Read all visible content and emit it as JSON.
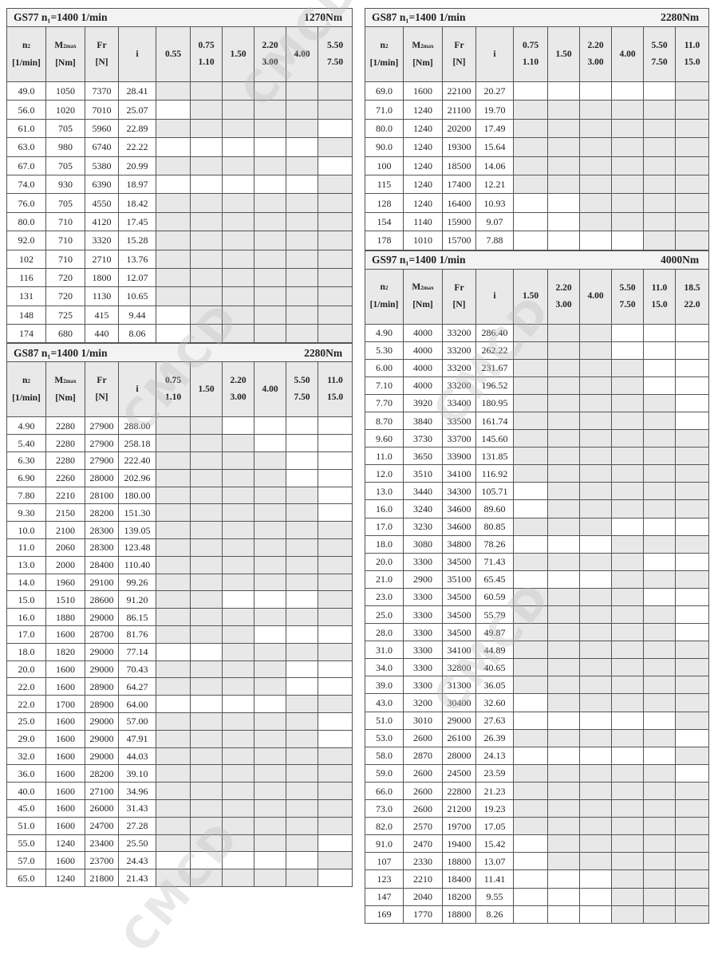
{
  "watermark": "CMCD",
  "colors": {
    "shaded": "#e8e8e8",
    "header_bg": "#e9e9e9",
    "border": "#555555"
  },
  "header_labels": {
    "n2": "n",
    "n2_sub": "2",
    "n2_unit": "[1/min]",
    "m2": "M",
    "m2_sub": "2max",
    "m2_unit": "[Nm]",
    "fr": "Fr",
    "fr_unit": "[N]",
    "i": "i"
  },
  "shading_legend": "1 = shaded cell, 0 = white cell in power columns",
  "left_tables": [
    {
      "title": "GS77 n₁=1400 1/min",
      "torque": "1270Nm",
      "power_columns": [
        [
          "0.55"
        ],
        [
          "0.75",
          "1.10"
        ],
        [
          "1.50"
        ],
        [
          "2.20",
          "3.00"
        ],
        [
          "4.00"
        ],
        [
          "5.50",
          "7.50"
        ]
      ],
      "rows": [
        [
          "49.0",
          "1050",
          "7370",
          "28.41",
          "111111"
        ],
        [
          "56.0",
          "1020",
          "7010",
          "25.07",
          "011111"
        ],
        [
          "61.0",
          "705",
          "5960",
          "22.89",
          "111110"
        ],
        [
          "63.0",
          "980",
          "6740",
          "22.22",
          "000001"
        ],
        [
          "67.0",
          "705",
          "5380",
          "20.99",
          "111110"
        ],
        [
          "74.0",
          "930",
          "6390",
          "18.97",
          "000001"
        ],
        [
          "76.0",
          "705",
          "4550",
          "18.42",
          "111111"
        ],
        [
          "80.0",
          "710",
          "4120",
          "17.45",
          "111111"
        ],
        [
          "92.0",
          "710",
          "3320",
          "15.28",
          "111111"
        ],
        [
          "102",
          "710",
          "2710",
          "13.76",
          "111111"
        ],
        [
          "116",
          "720",
          "1800",
          "12.07",
          "111111"
        ],
        [
          "131",
          "720",
          "1130",
          "10.65",
          "111111"
        ],
        [
          "148",
          "725",
          "415",
          "9.44",
          "011111"
        ],
        [
          "174",
          "680",
          "440",
          "8.06",
          "011111"
        ]
      ]
    },
    {
      "title": "GS87 n₁=1400 1/min",
      "torque": "2280Nm",
      "power_columns": [
        [
          "0.75",
          "1.10"
        ],
        [
          "1.50"
        ],
        [
          "2.20",
          "3.00"
        ],
        [
          "4.00"
        ],
        [
          "5.50",
          "7.50"
        ],
        [
          "11.0",
          "15.0"
        ]
      ],
      "rows": [
        [
          "4.90",
          "2280",
          "27900",
          "288.00",
          "110000"
        ],
        [
          "5.40",
          "2280",
          "27900",
          "258.18",
          "111000"
        ],
        [
          "6.30",
          "2280",
          "27900",
          "222.40",
          "111100"
        ],
        [
          "6.90",
          "2260",
          "28000",
          "202.96",
          "111100"
        ],
        [
          "7.80",
          "2210",
          "28100",
          "180.00",
          "111110"
        ],
        [
          "9.30",
          "2150",
          "28200",
          "151.30",
          "111110"
        ],
        [
          "10.0",
          "2100",
          "28300",
          "139.05",
          "111111"
        ],
        [
          "11.0",
          "2060",
          "28300",
          "123.48",
          "111111"
        ],
        [
          "13.0",
          "2000",
          "28400",
          "110.40",
          "111111"
        ],
        [
          "14.0",
          "1960",
          "29100",
          "99.26",
          "111111"
        ],
        [
          "15.0",
          "1510",
          "28600",
          "91.20",
          "110001"
        ],
        [
          "16.0",
          "1880",
          "29000",
          "86.15",
          "111111"
        ],
        [
          "17.0",
          "1600",
          "28700",
          "81.76",
          "111000"
        ],
        [
          "18.0",
          "1820",
          "29000",
          "77.14",
          "001111"
        ],
        [
          "20.0",
          "1600",
          "29000",
          "70.43",
          "111100"
        ],
        [
          "22.0",
          "1600",
          "28900",
          "64.27",
          "111100"
        ],
        [
          "22.0",
          "1700",
          "28900",
          "64.00",
          "000011"
        ],
        [
          "25.0",
          "1600",
          "29000",
          "57.00",
          "111110"
        ],
        [
          "29.0",
          "1600",
          "29000",
          "47.91",
          "111110"
        ],
        [
          "32.0",
          "1600",
          "29000",
          "44.03",
          "111111"
        ],
        [
          "36.0",
          "1600",
          "28200",
          "39.10",
          "111111"
        ],
        [
          "40.0",
          "1600",
          "27100",
          "34.96",
          "111111"
        ],
        [
          "45.0",
          "1600",
          "26000",
          "31.43",
          "111111"
        ],
        [
          "51.0",
          "1600",
          "24700",
          "27.28",
          "111111"
        ],
        [
          "55.0",
          "1240",
          "23400",
          "25.50",
          "111110"
        ],
        [
          "57.0",
          "1600",
          "23700",
          "24.43",
          "000001"
        ],
        [
          "65.0",
          "1240",
          "21800",
          "21.43",
          "111110"
        ]
      ]
    }
  ],
  "right_tables": [
    {
      "title": "GS87 n₁=1400 1/min",
      "torque": "2280Nm",
      "power_columns": [
        [
          "0.75",
          "1.10"
        ],
        [
          "1.50"
        ],
        [
          "2.20",
          "3.00"
        ],
        [
          "4.00"
        ],
        [
          "5.50",
          "7.50"
        ],
        [
          "11.0",
          "15.0"
        ]
      ],
      "rows": [
        [
          "69.0",
          "1600",
          "22100",
          "20.27",
          "000001"
        ],
        [
          "71.0",
          "1240",
          "21100",
          "19.70",
          "111111"
        ],
        [
          "80.0",
          "1240",
          "20200",
          "17.49",
          "111111"
        ],
        [
          "90.0",
          "1240",
          "19300",
          "15.64",
          "111111"
        ],
        [
          "100",
          "1240",
          "18500",
          "14.06",
          "111111"
        ],
        [
          "115",
          "1240",
          "17400",
          "12.21",
          "111111"
        ],
        [
          "128",
          "1240",
          "16400",
          "10.93",
          "001111"
        ],
        [
          "154",
          "1140",
          "15900",
          "9.07",
          "001111"
        ],
        [
          "178",
          "1010",
          "15700",
          "7.88",
          "000011"
        ]
      ]
    },
    {
      "title": "GS97 n₁=1400 1/min",
      "torque": "4000Nm",
      "power_columns": [
        [
          "1.50"
        ],
        [
          "2.20",
          "3.00"
        ],
        [
          "4.00"
        ],
        [
          "5.50",
          "7.50"
        ],
        [
          "11.0",
          "15.0"
        ],
        [
          "18.5",
          "22.0"
        ]
      ],
      "rows": [
        [
          "4.90",
          "4000",
          "33200",
          "286.40",
          "111000"
        ],
        [
          "5.30",
          "4000",
          "33200",
          "262.22",
          "111000"
        ],
        [
          "6.00",
          "4000",
          "33200",
          "231.67",
          "111100"
        ],
        [
          "7.10",
          "4000",
          "33200",
          "196.52",
          "111100"
        ],
        [
          "7.70",
          "3920",
          "33400",
          "180.95",
          "111110"
        ],
        [
          "8.70",
          "3840",
          "33500",
          "161.74",
          "111110"
        ],
        [
          "9.60",
          "3730",
          "33700",
          "145.60",
          "111111"
        ],
        [
          "11.0",
          "3650",
          "33900",
          "131.85",
          "111111"
        ],
        [
          "12.0",
          "3510",
          "34100",
          "116.92",
          "111111"
        ],
        [
          "13.0",
          "3440",
          "34300",
          "105.71",
          "011111"
        ],
        [
          "16.0",
          "3240",
          "34600",
          "89.60",
          "011111"
        ],
        [
          "17.0",
          "3230",
          "34600",
          "80.85",
          "111000"
        ],
        [
          "18.0",
          "3080",
          "34800",
          "78.26",
          "000111"
        ],
        [
          "20.0",
          "3300",
          "34500",
          "71.43",
          "111100"
        ],
        [
          "21.0",
          "2900",
          "35100",
          "65.45",
          "000111"
        ],
        [
          "23.0",
          "3300",
          "34500",
          "60.59",
          "111100"
        ],
        [
          "25.0",
          "3300",
          "34500",
          "55.79",
          "111110"
        ],
        [
          "28.0",
          "3300",
          "34500",
          "49.87",
          "111110"
        ],
        [
          "31.0",
          "3300",
          "34100",
          "44.89",
          "111111"
        ],
        [
          "34.0",
          "3300",
          "32800",
          "40.65",
          "111111"
        ],
        [
          "39.0",
          "3300",
          "31300",
          "36.05",
          "111111"
        ],
        [
          "43.0",
          "3200",
          "30400",
          "32.60",
          "011111"
        ],
        [
          "51.0",
          "3010",
          "29000",
          "27.63",
          "000001"
        ],
        [
          "53.0",
          "2600",
          "26100",
          "26.39",
          "111110"
        ],
        [
          "58.0",
          "2870",
          "28000",
          "24.13",
          "000001"
        ],
        [
          "59.0",
          "2600",
          "24500",
          "23.59",
          "111110"
        ],
        [
          "66.0",
          "2600",
          "22800",
          "21.23",
          "111111"
        ],
        [
          "73.0",
          "2600",
          "21200",
          "19.23",
          "111111"
        ],
        [
          "82.0",
          "2570",
          "19700",
          "17.05",
          "111111"
        ],
        [
          "91.0",
          "2470",
          "19400",
          "15.42",
          "011111"
        ],
        [
          "107",
          "2330",
          "18800",
          "13.07",
          "011111"
        ],
        [
          "123",
          "2210",
          "18400",
          "11.41",
          "000111"
        ],
        [
          "147",
          "2040",
          "18200",
          "9.55",
          "000111"
        ],
        [
          "169",
          "1770",
          "18800",
          "8.26",
          "000111"
        ]
      ]
    }
  ]
}
